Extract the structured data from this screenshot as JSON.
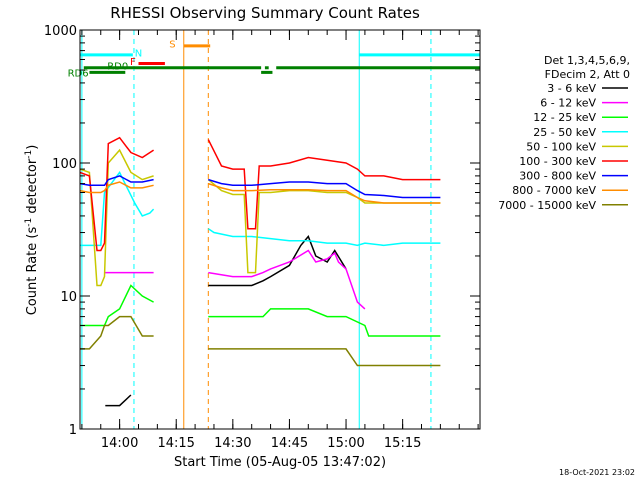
{
  "chart_data": {
    "type": "line",
    "title": "RHESSI Observing Summary Count Rates",
    "xlabel": "Start Time (05-Aug-05 13:47:02)",
    "ylabel_main": "Count Rate (s",
    "ylabel_sup": "-1",
    "ylabel_rest": " detector",
    "ylabel_sup2": "-1",
    "ylabel_end": ")",
    "y_scale": "log",
    "ylim": [
      1,
      1000
    ],
    "xlim_minutes": [
      -10.5,
      95.5
    ],
    "x_ticks": [
      {
        "t": 0,
        "label": "14:00"
      },
      {
        "t": 15,
        "label": "14:15"
      },
      {
        "t": 30,
        "label": "14:30"
      },
      {
        "t": 45,
        "label": "14:45"
      },
      {
        "t": 60,
        "label": "15:00"
      },
      {
        "t": 75,
        "label": "15:15"
      }
    ],
    "y_ticks": [
      {
        "v": 1,
        "label": "1"
      },
      {
        "v": 10,
        "label": "10"
      },
      {
        "v": 100,
        "label": "100"
      },
      {
        "v": 1000,
        "label": "1000"
      }
    ],
    "legend_header": [
      "Det 1,3,4,5,6,9,",
      "FDecim 2, Att 0"
    ],
    "legend_position": "right",
    "timestamp": "18-Oct-2021 23:02",
    "series": [
      {
        "name": "3 - 6 keV",
        "color": "#000000",
        "points": [
          [
            -10.5,
            null
          ],
          [
            -4,
            null
          ],
          [
            -3.8,
            1.5
          ],
          [
            0,
            1.5
          ],
          [
            3,
            1.8
          ],
          [
            3.3,
            null
          ],
          [
            20,
            null
          ],
          [
            23,
            null
          ],
          [
            23.5,
            12
          ],
          [
            30,
            12
          ],
          [
            35,
            12
          ],
          [
            38,
            13
          ],
          [
            40,
            14
          ],
          [
            45,
            17
          ],
          [
            48,
            24
          ],
          [
            50,
            28
          ],
          [
            52,
            20
          ],
          [
            55,
            18
          ],
          [
            57,
            22
          ],
          [
            60,
            16
          ],
          [
            61,
            null
          ],
          [
            95.5,
            null
          ]
        ]
      },
      {
        "name": "6 - 12 keV",
        "color": "#ff00ff",
        "points": [
          [
            -10.5,
            null
          ],
          [
            -4,
            null
          ],
          [
            -4,
            15
          ],
          [
            0,
            15
          ],
          [
            2,
            15
          ],
          [
            6,
            15
          ],
          [
            9,
            15
          ],
          [
            9.5,
            null
          ],
          [
            23,
            null
          ],
          [
            23.5,
            15
          ],
          [
            30,
            14
          ],
          [
            35,
            14
          ],
          [
            38,
            15
          ],
          [
            40,
            16
          ],
          [
            45,
            18
          ],
          [
            50,
            22
          ],
          [
            52,
            18
          ],
          [
            55,
            19
          ],
          [
            57,
            21
          ],
          [
            58,
            18
          ],
          [
            60,
            16
          ],
          [
            63,
            9
          ],
          [
            65,
            8
          ],
          [
            65.5,
            null
          ],
          [
            95.5,
            null
          ]
        ]
      },
      {
        "name": "12 - 25 keV",
        "color": "#00ff00",
        "points": [
          [
            -10.5,
            6
          ],
          [
            -4,
            6
          ],
          [
            -3,
            7
          ],
          [
            0,
            8
          ],
          [
            3,
            12
          ],
          [
            6,
            10
          ],
          [
            9,
            9
          ],
          [
            9.5,
            null
          ],
          [
            23,
            null
          ],
          [
            23.5,
            7
          ],
          [
            30,
            7
          ],
          [
            35,
            7
          ],
          [
            38,
            7
          ],
          [
            40,
            8
          ],
          [
            45,
            8
          ],
          [
            50,
            8
          ],
          [
            55,
            7
          ],
          [
            60,
            7
          ],
          [
            65,
            6
          ],
          [
            66,
            5
          ],
          [
            70,
            5
          ],
          [
            75,
            5
          ],
          [
            80,
            5
          ],
          [
            85,
            5
          ],
          [
            85.5,
            null
          ],
          [
            95.5,
            null
          ]
        ]
      },
      {
        "name": "25 - 50 keV",
        "color": "#00ffff",
        "points": [
          [
            -10.5,
            24
          ],
          [
            -8,
            24
          ],
          [
            -5,
            24
          ],
          [
            -4,
            60
          ],
          [
            0,
            85
          ],
          [
            2,
            65
          ],
          [
            4,
            50
          ],
          [
            6,
            40
          ],
          [
            8,
            42
          ],
          [
            9,
            45
          ],
          [
            9.5,
            null
          ],
          [
            23,
            null
          ],
          [
            23.5,
            32
          ],
          [
            25,
            30
          ],
          [
            30,
            28
          ],
          [
            35,
            28
          ],
          [
            40,
            27
          ],
          [
            45,
            26
          ],
          [
            50,
            26
          ],
          [
            55,
            25
          ],
          [
            60,
            25
          ],
          [
            63,
            24
          ],
          [
            65,
            25
          ],
          [
            70,
            24
          ],
          [
            75,
            25
          ],
          [
            80,
            25
          ],
          [
            85,
            25
          ],
          [
            85.5,
            null
          ],
          [
            95.5,
            null
          ]
        ]
      },
      {
        "name": "50 - 100 keV",
        "color": "#c8c800",
        "points": [
          [
            -10.5,
            90
          ],
          [
            -8,
            85
          ],
          [
            -6,
            12
          ],
          [
            -5,
            12
          ],
          [
            -4,
            14
          ],
          [
            -3,
            100
          ],
          [
            0,
            125
          ],
          [
            3,
            85
          ],
          [
            6,
            75
          ],
          [
            9,
            80
          ],
          [
            9.5,
            null
          ],
          [
            23,
            null
          ],
          [
            23.5,
            75
          ],
          [
            27,
            62
          ],
          [
            30,
            58
          ],
          [
            33,
            58
          ],
          [
            34,
            15
          ],
          [
            35,
            15
          ],
          [
            36,
            15
          ],
          [
            37,
            60
          ],
          [
            40,
            60
          ],
          [
            45,
            62
          ],
          [
            50,
            62
          ],
          [
            55,
            60
          ],
          [
            60,
            60
          ],
          [
            63,
            55
          ],
          [
            65,
            50
          ],
          [
            70,
            50
          ],
          [
            75,
            50
          ],
          [
            80,
            50
          ],
          [
            85,
            50
          ],
          [
            85.5,
            null
          ],
          [
            95.5,
            null
          ]
        ]
      },
      {
        "name": "100 - 300 keV",
        "color": "#ff0000",
        "points": [
          [
            -10.5,
            85
          ],
          [
            -8,
            80
          ],
          [
            -6,
            22
          ],
          [
            -5,
            22
          ],
          [
            -4,
            25
          ],
          [
            -3,
            140
          ],
          [
            0,
            155
          ],
          [
            3,
            120
          ],
          [
            6,
            110
          ],
          [
            9,
            125
          ],
          [
            9.5,
            null
          ],
          [
            23,
            null
          ],
          [
            23.5,
            150
          ],
          [
            27,
            95
          ],
          [
            30,
            90
          ],
          [
            33,
            90
          ],
          [
            34,
            32
          ],
          [
            35,
            32
          ],
          [
            36,
            32
          ],
          [
            37,
            95
          ],
          [
            40,
            95
          ],
          [
            45,
            100
          ],
          [
            50,
            110
          ],
          [
            55,
            105
          ],
          [
            60,
            100
          ],
          [
            63,
            90
          ],
          [
            65,
            80
          ],
          [
            70,
            80
          ],
          [
            75,
            75
          ],
          [
            80,
            75
          ],
          [
            85,
            75
          ],
          [
            85.5,
            null
          ],
          [
            95.5,
            null
          ]
        ]
      },
      {
        "name": "300 - 800 keV",
        "color": "#0000ff",
        "points": [
          [
            -10.5,
            70
          ],
          [
            -8,
            68
          ],
          [
            -5,
            68
          ],
          [
            -4,
            68
          ],
          [
            -3,
            75
          ],
          [
            0,
            80
          ],
          [
            3,
            72
          ],
          [
            6,
            72
          ],
          [
            9,
            75
          ],
          [
            9.5,
            null
          ],
          [
            23,
            null
          ],
          [
            23.5,
            75
          ],
          [
            27,
            70
          ],
          [
            30,
            68
          ],
          [
            35,
            68
          ],
          [
            40,
            70
          ],
          [
            45,
            72
          ],
          [
            50,
            72
          ],
          [
            55,
            70
          ],
          [
            60,
            70
          ],
          [
            63,
            62
          ],
          [
            65,
            58
          ],
          [
            70,
            57
          ],
          [
            75,
            55
          ],
          [
            80,
            55
          ],
          [
            85,
            55
          ],
          [
            85.5,
            null
          ],
          [
            95.5,
            null
          ]
        ]
      },
      {
        "name": "800 - 7000 keV",
        "color": "#ff8c00",
        "points": [
          [
            -10.5,
            62
          ],
          [
            -8,
            60
          ],
          [
            -5,
            60
          ],
          [
            -4,
            62
          ],
          [
            -3,
            68
          ],
          [
            0,
            72
          ],
          [
            3,
            65
          ],
          [
            6,
            65
          ],
          [
            9,
            68
          ],
          [
            9.5,
            null
          ],
          [
            23,
            null
          ],
          [
            23.5,
            70
          ],
          [
            27,
            65
          ],
          [
            30,
            62
          ],
          [
            35,
            62
          ],
          [
            40,
            63
          ],
          [
            45,
            63
          ],
          [
            50,
            63
          ],
          [
            55,
            62
          ],
          [
            60,
            62
          ],
          [
            63,
            55
          ],
          [
            65,
            52
          ],
          [
            70,
            50
          ],
          [
            75,
            50
          ],
          [
            80,
            50
          ],
          [
            85,
            50
          ],
          [
            85.5,
            null
          ],
          [
            95.5,
            null
          ]
        ]
      },
      {
        "name": "7000 - 15000 keV",
        "color": "#808000",
        "points": [
          [
            -10.5,
            4
          ],
          [
            -8,
            4
          ],
          [
            -5,
            5
          ],
          [
            -4,
            6
          ],
          [
            -3,
            6
          ],
          [
            0,
            7
          ],
          [
            3,
            7
          ],
          [
            6,
            5
          ],
          [
            9,
            5
          ],
          [
            9.5,
            null
          ],
          [
            23,
            null
          ],
          [
            23.5,
            4
          ],
          [
            30,
            4
          ],
          [
            35,
            4
          ],
          [
            38,
            4
          ],
          [
            40,
            4
          ],
          [
            45,
            4
          ],
          [
            50,
            4
          ],
          [
            55,
            4
          ],
          [
            60,
            4
          ],
          [
            63,
            3
          ],
          [
            65,
            3
          ],
          [
            70,
            3
          ],
          [
            75,
            3
          ],
          [
            80,
            3
          ],
          [
            85,
            3
          ],
          [
            85.5,
            null
          ],
          [
            95.5,
            null
          ]
        ]
      }
    ],
    "flags": [
      {
        "name": "N",
        "color": "#00ffff",
        "segments": [
          [
            -10.5,
            3.5
          ],
          [
            63.5,
            95.5
          ]
        ],
        "level": 650,
        "label_at": 5,
        "label_level": 680
      },
      {
        "name": "F",
        "color": "#ff0000",
        "segments": [
          [
            5,
            12
          ]
        ],
        "level": 560,
        "label_at": 3.5,
        "label_level": 585
      },
      {
        "name": "S",
        "color": "#ff8c00",
        "segments": [
          [
            17,
            24
          ]
        ],
        "level": 760,
        "label_at": 14,
        "label_level": 790
      },
      {
        "name": "RD0",
        "color": "#008000",
        "segments": [
          [
            -9.5,
            37.5
          ],
          [
            38.5,
            39.5
          ],
          [
            41.5,
            95.5
          ]
        ],
        "level": 520,
        "label_at": -0.5,
        "label_level": 540
      },
      {
        "name": "RD6",
        "color": "#008000",
        "segments": [
          [
            -8,
            1.5
          ],
          [
            37.5,
            40.5
          ]
        ],
        "level": 480,
        "label_at": -11,
        "label_level": 480
      }
    ],
    "vlines": [
      {
        "t": -10,
        "color": "#00ffff",
        "style": "solid"
      },
      {
        "t": 3.8,
        "color": "#00ffff",
        "style": "dashed"
      },
      {
        "t": 17,
        "color": "#ff8c00",
        "style": "solid"
      },
      {
        "t": 23.5,
        "color": "#ff8c00",
        "style": "dashed"
      },
      {
        "t": 63.5,
        "color": "#00ffff",
        "style": "solid"
      },
      {
        "t": 82.5,
        "color": "#00ffff",
        "style": "dashed"
      }
    ]
  }
}
